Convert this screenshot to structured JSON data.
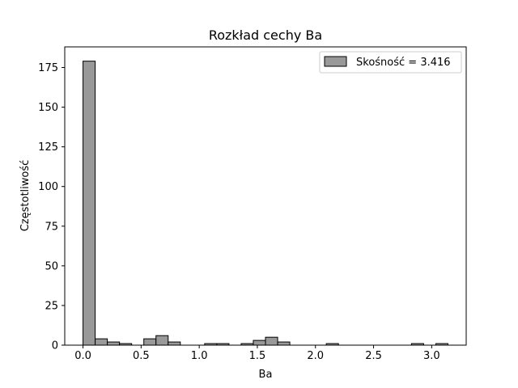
{
  "chart_data": {
    "type": "bar",
    "title": "Rozkład cechy Ba",
    "xlabel": "Ba",
    "ylabel": "Częstotliwość",
    "xlim": [
      -0.157,
      3.297
    ],
    "ylim": [
      0,
      188
    ],
    "xticks": [
      0.0,
      0.5,
      1.0,
      1.5,
      2.0,
      2.5,
      3.0
    ],
    "xtick_labels": [
      "0.0",
      "0.5",
      "1.0",
      "1.5",
      "2.0",
      "2.5",
      "3.0"
    ],
    "yticks": [
      0,
      25,
      50,
      75,
      100,
      125,
      150,
      175
    ],
    "ytick_labels": [
      "0",
      "25",
      "50",
      "75",
      "100",
      "125",
      "150",
      "175"
    ],
    "grid": false,
    "legend": {
      "position": "top-right",
      "entries": [
        "Skośność = 3.416"
      ]
    },
    "bar_color": "#999999",
    "edge_color": "#000000",
    "bin_width": 0.1047,
    "bins": [
      {
        "x0": 0.0,
        "value": 179
      },
      {
        "x0": 0.1047,
        "value": 4
      },
      {
        "x0": 0.2093,
        "value": 2
      },
      {
        "x0": 0.314,
        "value": 1
      },
      {
        "x0": 0.4187,
        "value": 0
      },
      {
        "x0": 0.5233,
        "value": 4
      },
      {
        "x0": 0.628,
        "value": 6
      },
      {
        "x0": 0.7327,
        "value": 2
      },
      {
        "x0": 0.8373,
        "value": 0
      },
      {
        "x0": 0.942,
        "value": 0
      },
      {
        "x0": 1.0467,
        "value": 1
      },
      {
        "x0": 1.1513,
        "value": 1
      },
      {
        "x0": 1.256,
        "value": 0
      },
      {
        "x0": 1.3607,
        "value": 1
      },
      {
        "x0": 1.4653,
        "value": 3
      },
      {
        "x0": 1.57,
        "value": 5
      },
      {
        "x0": 1.6747,
        "value": 2
      },
      {
        "x0": 1.7793,
        "value": 0
      },
      {
        "x0": 1.884,
        "value": 0
      },
      {
        "x0": 1.9887,
        "value": 0
      },
      {
        "x0": 2.0933,
        "value": 1
      },
      {
        "x0": 2.198,
        "value": 0
      },
      {
        "x0": 2.3027,
        "value": 0
      },
      {
        "x0": 2.4073,
        "value": 0
      },
      {
        "x0": 2.512,
        "value": 0
      },
      {
        "x0": 2.6167,
        "value": 0
      },
      {
        "x0": 2.7213,
        "value": 0
      },
      {
        "x0": 2.826,
        "value": 1
      },
      {
        "x0": 2.9307,
        "value": 0
      },
      {
        "x0": 3.0353,
        "value": 1
      }
    ]
  }
}
